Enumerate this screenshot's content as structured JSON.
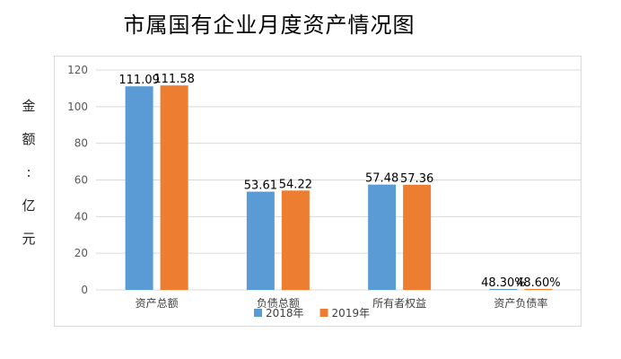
{
  "chart_data": {
    "type": "bar",
    "title": "市属国有企业月度资产情况图",
    "ylabel": "金额：亿元",
    "ylabel_chars": [
      "金",
      "额",
      ":",
      "亿",
      "元"
    ],
    "categories": [
      "资产总额",
      "负债总额",
      "所有者权益",
      "资产负债率"
    ],
    "series": [
      {
        "name": "2018年",
        "values": [
          111.09,
          53.61,
          57.48,
          0.483
        ],
        "labels": [
          "111.09",
          "53.61",
          "57.48",
          "48.30%"
        ],
        "color": "#5b9bd5"
      },
      {
        "name": "2019年",
        "values": [
          111.58,
          54.22,
          57.36,
          0.486
        ],
        "labels": [
          "111.58",
          "54.22",
          "57.36",
          "48.60%"
        ],
        "color": "#ed7d31"
      }
    ],
    "ylim": [
      0,
      120
    ],
    "yticks": [
      0,
      20,
      40,
      60,
      80,
      100,
      120
    ],
    "grid": true,
    "legend": "bottom"
  }
}
